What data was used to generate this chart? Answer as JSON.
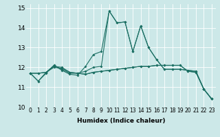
{
  "xlabel": "Humidex (Indice chaleur)",
  "ylabel": "",
  "xlim": [
    -0.5,
    23.5
  ],
  "ylim": [
    10,
    15.2
  ],
  "yticks": [
    10,
    11,
    12,
    13,
    14,
    15
  ],
  "xticks": [
    0,
    1,
    2,
    3,
    4,
    5,
    6,
    7,
    8,
    9,
    10,
    11,
    12,
    13,
    14,
    15,
    16,
    17,
    18,
    19,
    20,
    21,
    22,
    23
  ],
  "bg_color": "#cce8e8",
  "line_color": "#1a6e62",
  "grid_color": "#ffffff",
  "lines": [
    [
      11.7,
      11.3,
      11.7,
      12.1,
      11.9,
      11.7,
      11.7,
      11.8,
      12.0,
      12.05,
      14.85,
      14.25,
      14.3,
      12.8,
      14.1,
      13.0,
      12.4,
      11.9,
      11.9,
      11.9,
      11.85,
      11.8,
      10.9,
      10.4
    ],
    [
      11.7,
      11.7,
      11.75,
      12.0,
      11.95,
      11.75,
      11.7,
      11.65,
      11.75,
      11.8,
      11.85,
      11.9,
      11.95,
      12.0,
      12.05,
      12.05,
      12.1,
      12.1,
      12.1,
      12.1,
      11.8,
      11.75,
      10.9,
      10.4
    ],
    [
      11.7,
      11.3,
      11.75,
      12.1,
      11.85,
      11.65,
      11.6,
      12.05,
      12.65,
      12.8,
      14.85,
      14.25,
      14.3,
      12.8,
      14.1,
      13.0,
      12.4,
      11.9,
      11.9,
      11.9,
      11.85,
      11.8,
      10.9,
      10.4
    ],
    [
      11.7,
      11.7,
      11.75,
      12.05,
      12.0,
      11.75,
      11.7,
      11.65,
      11.75,
      11.8,
      11.85,
      11.9,
      11.95,
      12.0,
      12.05,
      12.05,
      12.1,
      12.1,
      12.1,
      12.1,
      11.8,
      11.75,
      10.9,
      10.4
    ]
  ]
}
